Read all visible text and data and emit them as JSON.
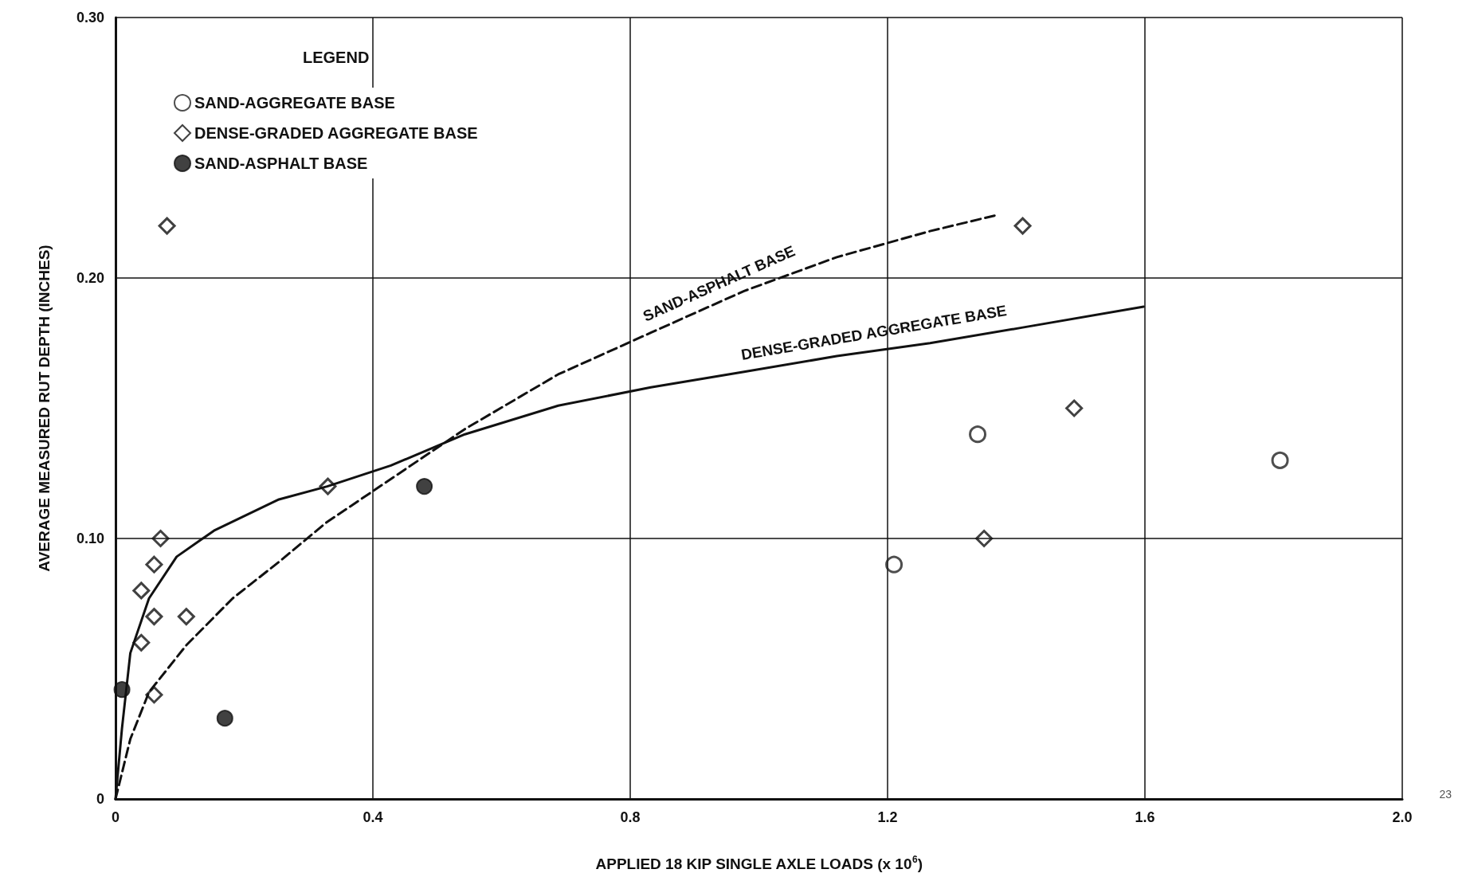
{
  "chart_data": {
    "type": "scatter",
    "xlabel": "APPLIED 18 KIP SINGLE AXLE LOADS (x 10$^{6}$)",
    "ylabel": "AVERAGE MEASURED RUT DEPTH (INCHES)",
    "legend_title": "LEGEND",
    "legend": "top left",
    "grid": true,
    "xlim": [
      0,
      2.0
    ],
    "xticks": [
      0,
      0.4,
      0.8,
      1.2,
      1.6,
      {
        "value": 2,
        "label": "2.0"
      }
    ],
    "ylim": [
      0,
      0.3
    ],
    "yticks": [
      0,
      {
        "value": 0.1,
        "label": "0.10"
      },
      {
        "value": 0.2,
        "label": "0.20"
      },
      {
        "value": 0.3,
        "label": "0.30"
      }
    ],
    "series": [
      {
        "name": "SAND-AGGREGATE BASE",
        "marker": "circle",
        "color": "#222222",
        "x": [
          1.21,
          1.34,
          1.81
        ],
        "values": [
          0.09,
          0.14,
          0.13
        ]
      },
      {
        "name": "DENSE-GRADED AGGREGATE BASE",
        "marker": "diamond",
        "color": "#111111",
        "x": [
          0.08,
          1.41,
          1.49,
          1.35,
          0.33,
          0.07,
          0.06,
          0.04,
          0.06,
          0.11,
          0.04,
          0.06
        ],
        "values": [
          0.22,
          0.22,
          0.15,
          0.1,
          0.12,
          0.1,
          0.09,
          0.08,
          0.07,
          0.07,
          0.06,
          0.04
        ]
      },
      {
        "name": "SAND-ASPHALT BASE",
        "marker": "circle",
        "color": "#111111",
        "x": [
          0.01,
          0.17,
          0.48
        ],
        "values": [
          0.042,
          0.031,
          0.12
        ]
      },
      {
        "name": "DENSE-GRADED AGGREGATE BASE",
        "type": "line",
        "line_style": "solid",
        "marker": "none",
        "color": "#111111",
        "x": [
          0,
          0.01,
          0.023,
          0.052,
          0.095,
          0.153,
          0.254,
          0.329,
          0.428,
          0.543,
          0.688,
          0.832,
          0.977,
          1.121,
          1.266,
          1.41,
          1.598
        ],
        "values": [
          0,
          0.027,
          0.056,
          0.077,
          0.093,
          0.103,
          0.115,
          0.12,
          0.128,
          0.14,
          0.151,
          0.158,
          0.164,
          0.17,
          0.175,
          0.181,
          0.189
        ]
      },
      {
        "name": "SAND-ASPHALT BASE",
        "type": "line",
        "line_style": "dashed",
        "marker": "none",
        "color": "#111111",
        "x": [
          0,
          0.023,
          0.052,
          0.11,
          0.182,
          0.254,
          0.327,
          0.399,
          0.543,
          0.688,
          0.832,
          0.977,
          1.121,
          1.266,
          1.367
        ],
        "values": [
          0,
          0.023,
          0.041,
          0.059,
          0.077,
          0.091,
          0.106,
          0.118,
          0.142,
          0.163,
          0.179,
          0.195,
          0.208,
          0.218,
          0.224
        ]
      }
    ],
    "annotations": [
      "23"
    ]
  }
}
